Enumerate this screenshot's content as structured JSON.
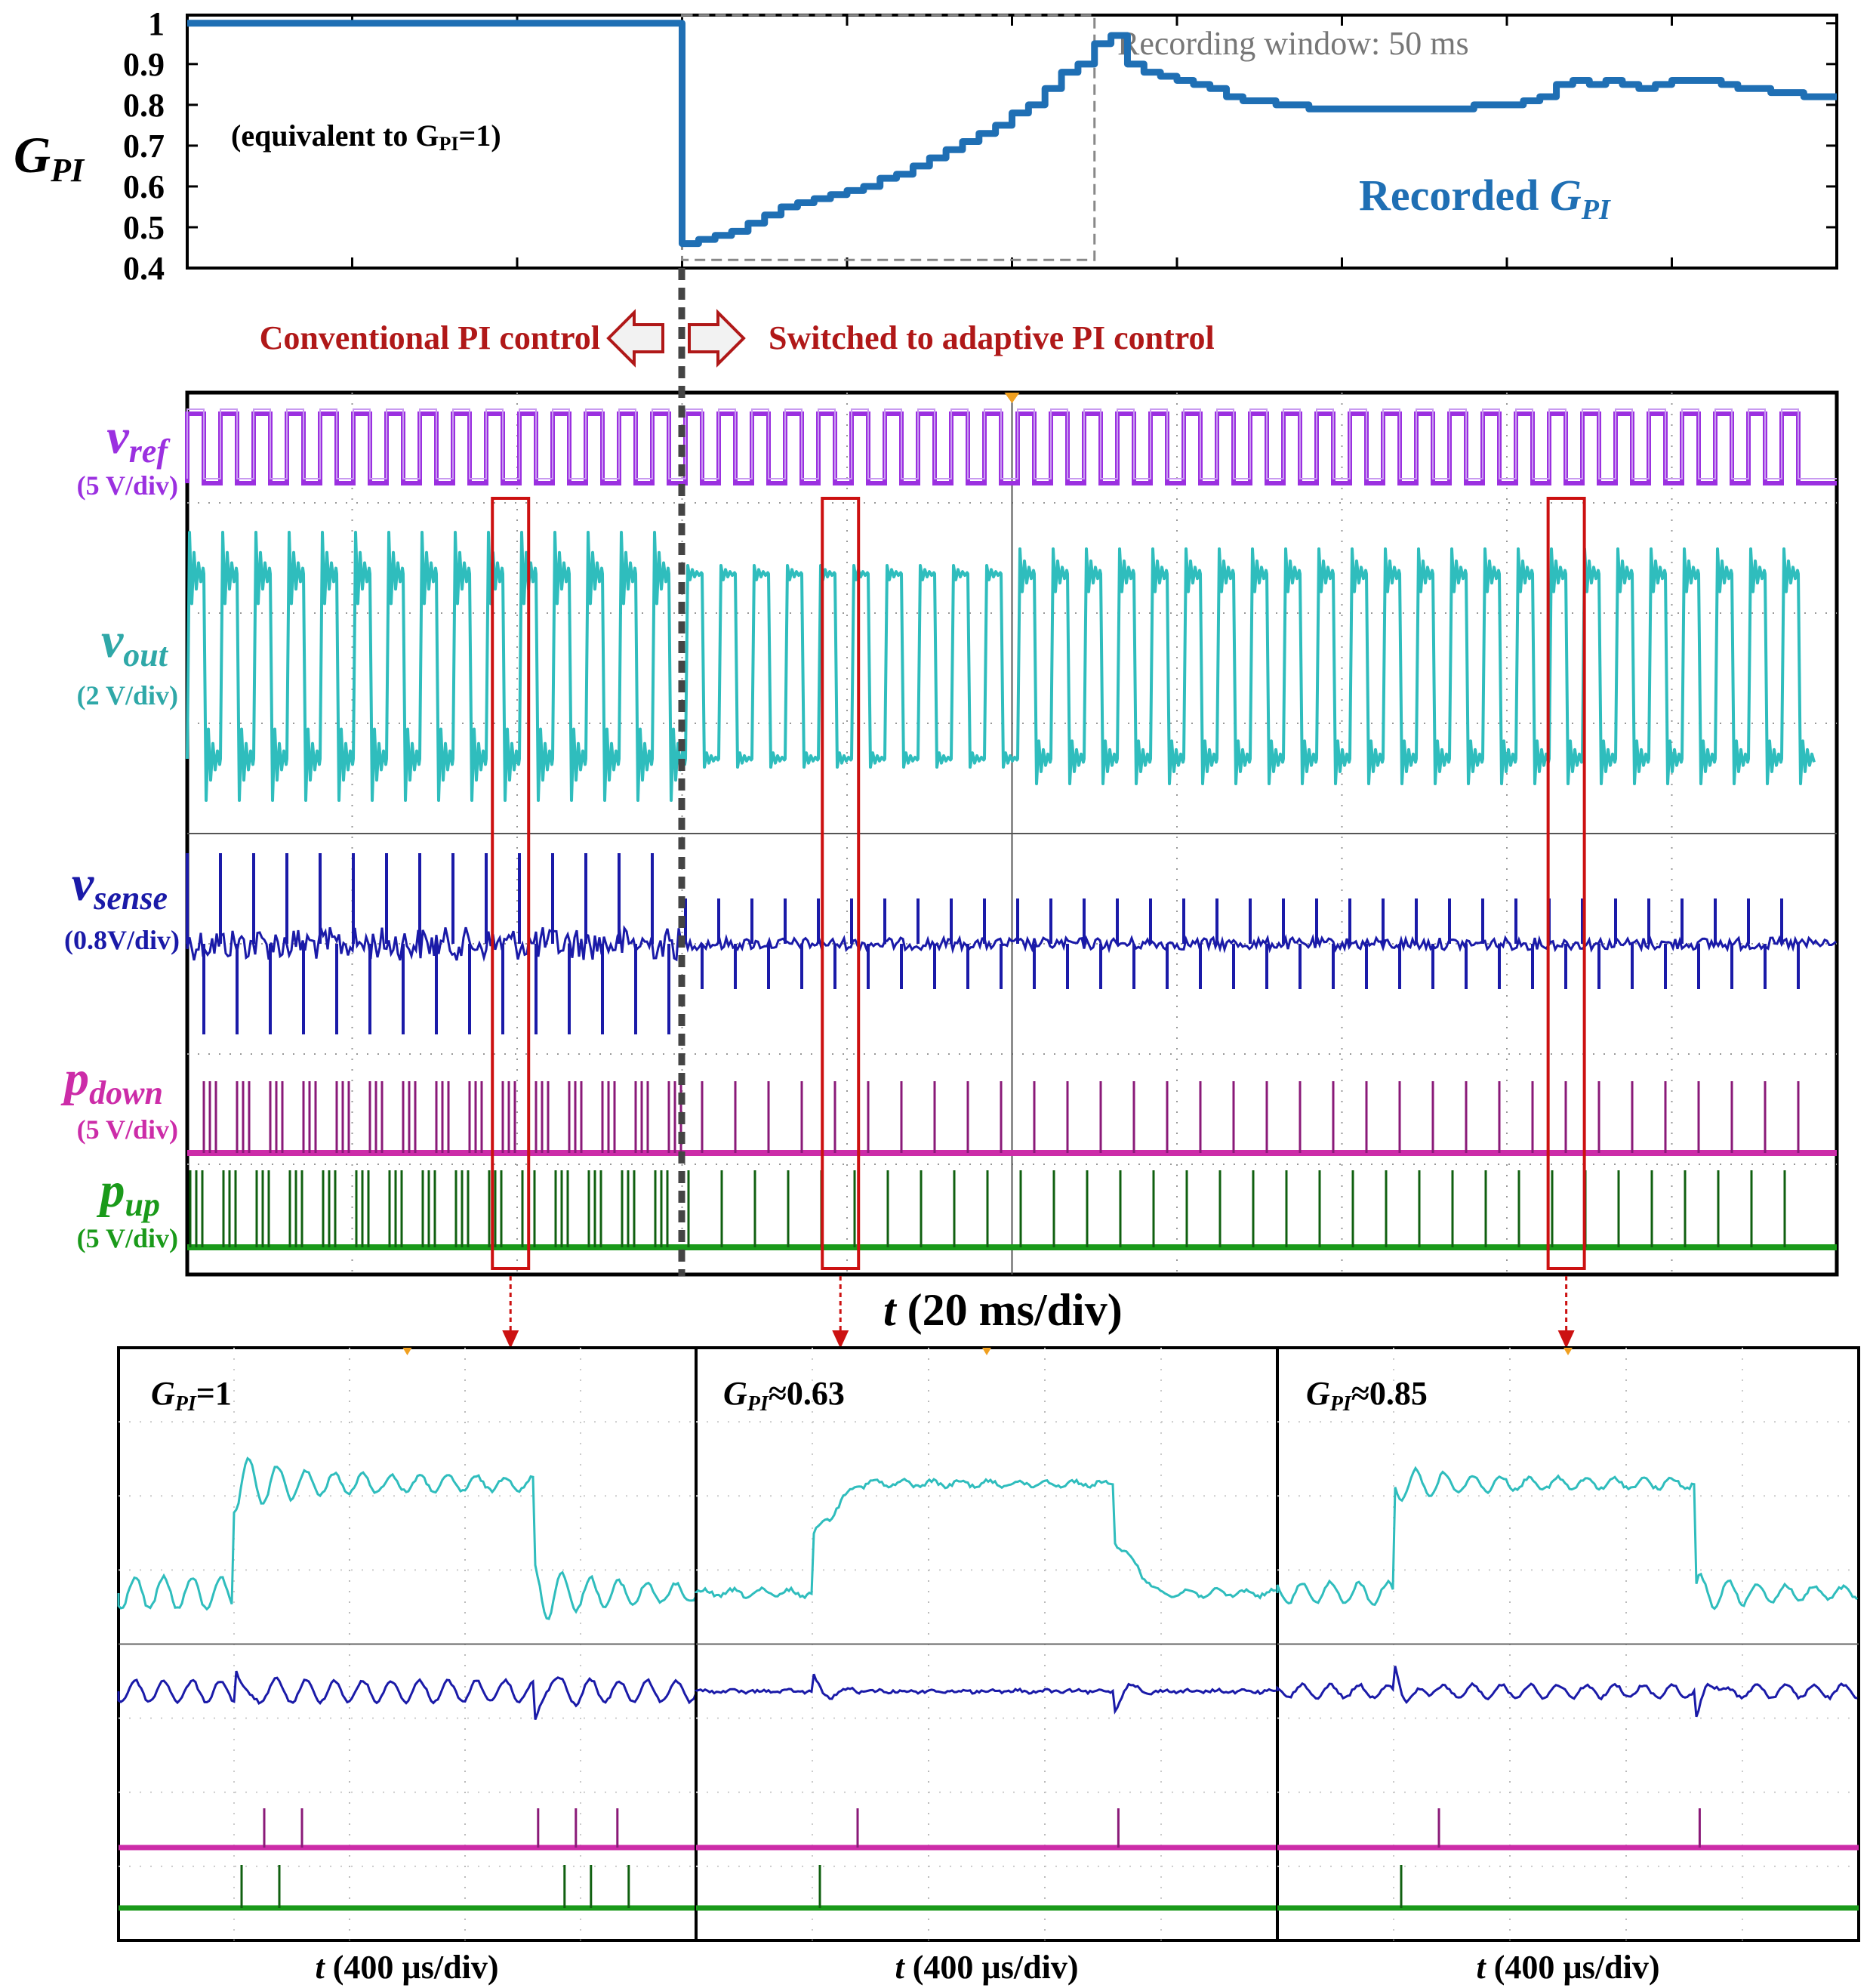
{
  "chart_data": [
    {
      "type": "line",
      "id": "gpi-plot",
      "ylabel": "G",
      "ylabel_sub": "PI",
      "ylim": [
        0.4,
        1.02
      ],
      "yticks": [
        "1",
        "0.9",
        "0.8",
        "0.7",
        "0.6",
        "0.5",
        "0.4"
      ],
      "ytick_values": [
        1,
        0.9,
        0.8,
        0.7,
        0.6,
        0.5,
        0.4
      ],
      "x_divisions": 10,
      "x_unit": "ms",
      "x_range_ms": [
        0,
        200
      ],
      "switch_time_ms": 60,
      "series": [
        {
          "name": "Recorded G_PI",
          "color": "#1f6fb4",
          "x": [
            0,
            59.9,
            60,
            62,
            64,
            66,
            68,
            70,
            72,
            74,
            76,
            78,
            80,
            82,
            84,
            86,
            88,
            90,
            92,
            94,
            96,
            98,
            100,
            102,
            104,
            106,
            108,
            110,
            112,
            114,
            116,
            118,
            120,
            122,
            124,
            126,
            128,
            130,
            132,
            134,
            136,
            138,
            140,
            142,
            144,
            146,
            148,
            150,
            152,
            154,
            156,
            158,
            160,
            162,
            164,
            166,
            168,
            170,
            172,
            174,
            176,
            178,
            180,
            182,
            184,
            186,
            188,
            190,
            192,
            194,
            196,
            198,
            200
          ],
          "y": [
            1.0,
            1.0,
            0.46,
            0.47,
            0.48,
            0.49,
            0.51,
            0.53,
            0.55,
            0.56,
            0.57,
            0.58,
            0.59,
            0.6,
            0.62,
            0.63,
            0.65,
            0.67,
            0.69,
            0.71,
            0.73,
            0.75,
            0.78,
            0.8,
            0.84,
            0.88,
            0.9,
            0.95,
            0.97,
            0.9,
            0.88,
            0.87,
            0.86,
            0.85,
            0.84,
            0.82,
            0.81,
            0.81,
            0.8,
            0.8,
            0.79,
            0.79,
            0.79,
            0.79,
            0.79,
            0.79,
            0.79,
            0.79,
            0.79,
            0.79,
            0.8,
            0.8,
            0.8,
            0.81,
            0.82,
            0.85,
            0.86,
            0.85,
            0.86,
            0.85,
            0.84,
            0.85,
            0.86,
            0.86,
            0.86,
            0.85,
            0.84,
            0.84,
            0.83,
            0.83,
            0.82,
            0.82,
            0.82
          ]
        }
      ],
      "annotations": {
        "recording_window": "Recording window: 50 ms",
        "recording_window_ms": [
          60,
          110
        ],
        "recording_window_y": [
          0.42,
          1.02
        ],
        "equivalent": "(equivalent to G",
        "equivalent_sub": "PI",
        "equivalent_end": "=1)",
        "recorded_label": "Recorded ",
        "recorded_g": "G",
        "recorded_sub": "PI"
      }
    },
    {
      "type": "line",
      "id": "scope-20ms",
      "xlabel_t": "t",
      "xlabel_rest": " (20 ms/div)",
      "x_divisions": 10,
      "switch_division": 3,
      "highlight_divisions": [
        1.85,
        3.85,
        8.25
      ],
      "channels": [
        {
          "name": "v",
          "sub": "ref",
          "scale": "(5 V/div)",
          "color": "#9b30e0"
        },
        {
          "name": "v",
          "sub": "out",
          "scale": "(2 V/div)",
          "color": "#2fbdbd"
        },
        {
          "name": "v",
          "sub": "sense",
          "scale": "(0.8V/div)",
          "color": "#1a1aa8"
        },
        {
          "name": "p",
          "sub": "down",
          "scale": "(5 V/div)",
          "color": "#cc2ca8"
        },
        {
          "name": "p",
          "sub": "up",
          "scale": "(5 V/div)",
          "color": "#1a9a1a"
        }
      ]
    },
    {
      "type": "line",
      "id": "zoom-panels",
      "xlabel_t": "t",
      "xlabel_rest": " (400 µs/div)",
      "panels": [
        {
          "label_g": "G",
          "label_sub": "PI",
          "label_val": "=1",
          "gpi": 1.0
        },
        {
          "label_g": "G",
          "label_sub": "PI",
          "label_val": "≈0.63",
          "gpi": 0.63
        },
        {
          "label_g": "G",
          "label_sub": "PI",
          "label_val": "≈0.85",
          "gpi": 0.85
        }
      ]
    }
  ],
  "control_labels": {
    "conventional": "Conventional PI control",
    "adaptive": "Switched to adaptive PI control"
  },
  "colors": {
    "gpi_line": "#1f6fb4",
    "annotation_red": "#b01818",
    "red_box": "#cc1111",
    "grid_gray": "#8a8a8a",
    "vref": "#9b30e0",
    "vout": "#2fbdbd",
    "vsense": "#1a1aa8",
    "pdown": "#cc2ca8",
    "pup": "#1a9a1a",
    "trigger_orange": "#f0a020"
  }
}
